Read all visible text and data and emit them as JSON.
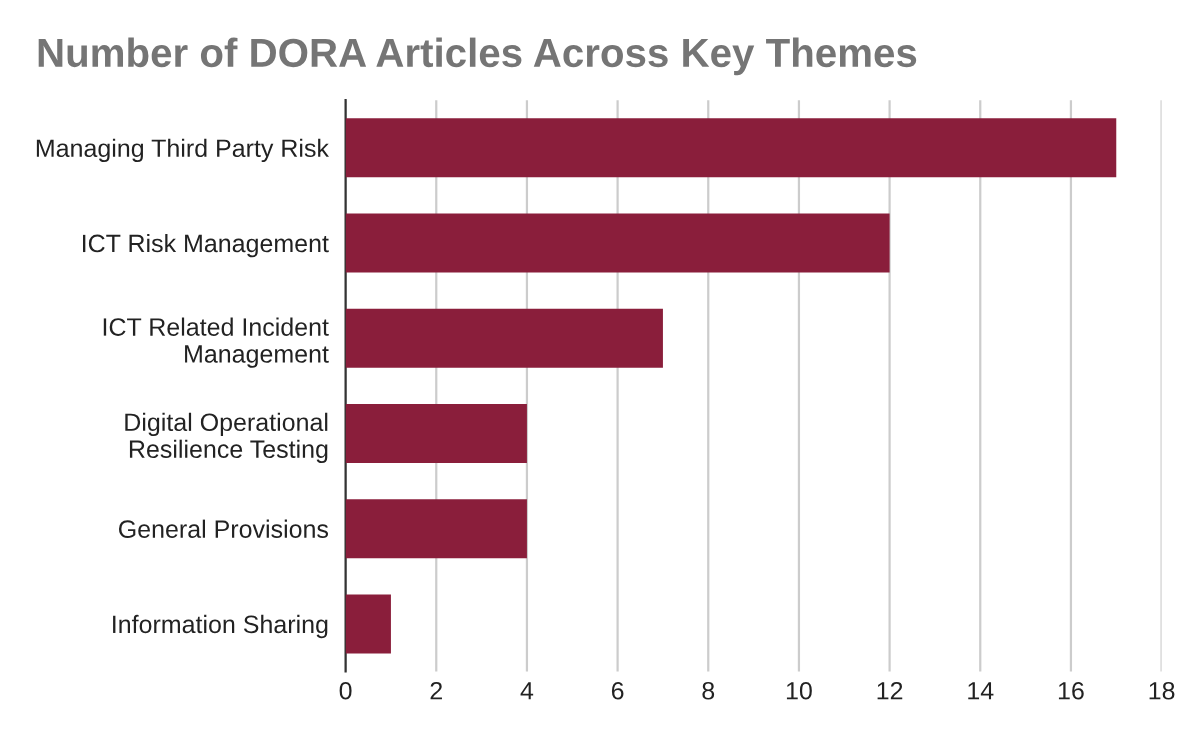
{
  "chart_data": {
    "type": "bar",
    "orientation": "horizontal",
    "title": "Number of DORA Articles Across Key Themes",
    "categories": [
      "Managing Third Party Risk",
      "ICT Risk Management",
      "ICT Related Incident\nManagement",
      "Digital Operational\nResilience Testing",
      "General Provisions",
      "Information Sharing"
    ],
    "values": [
      17,
      12,
      7,
      4,
      4,
      1
    ],
    "color": "#8a1e3b",
    "xlim": [
      0,
      18
    ],
    "xticks": [
      0,
      2,
      4,
      6,
      8,
      10,
      12,
      14,
      16,
      18
    ],
    "grid": "x",
    "legend": false
  }
}
